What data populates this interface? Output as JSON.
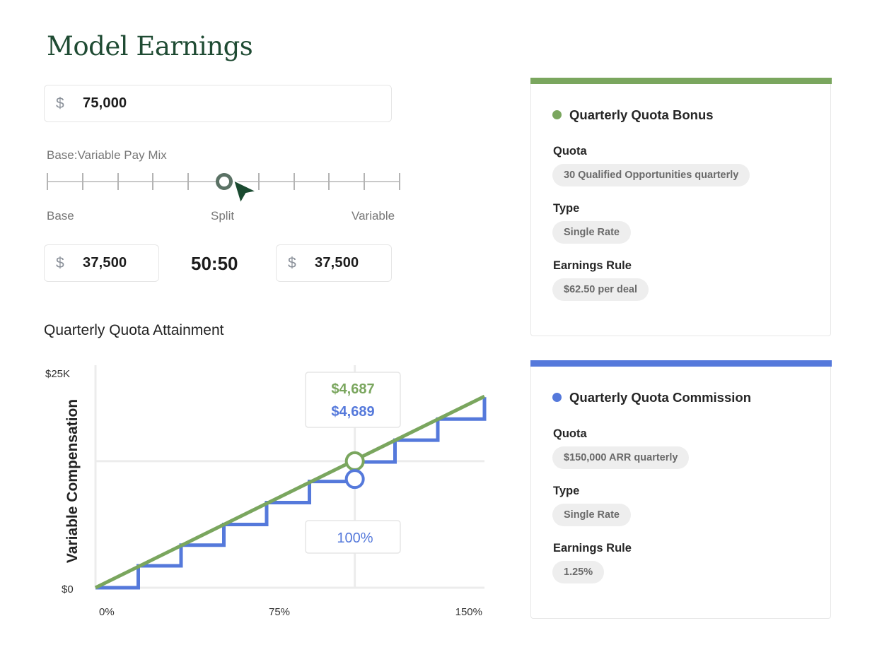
{
  "title": "Model Earnings",
  "total": {
    "currency": "$",
    "value": "75,000"
  },
  "mix": {
    "label": "Base:Variable Pay Mix",
    "scale": [
      "Base",
      "Split",
      "Variable"
    ],
    "position": 0.5
  },
  "base": {
    "currency": "$",
    "value": "37,500"
  },
  "ratio": "50:50",
  "variable": {
    "currency": "$",
    "value": "37,500"
  },
  "chart_title": "Quarterly Quota Attainment",
  "chart_data": {
    "type": "line",
    "ylabel": "Variable Compensation",
    "yticks": [
      "$25K",
      "$0"
    ],
    "xticks": [
      "0%",
      "75%",
      "150%"
    ],
    "xlim": [
      0,
      150
    ],
    "ylim": [
      0,
      25000
    ],
    "series": [
      {
        "color": "#7aa65e",
        "points": [
          [
            0,
            0
          ],
          [
            150,
            23600
          ]
        ]
      },
      {
        "color": "#5579db",
        "steps": [
          [
            0,
            0
          ],
          [
            16.5,
            2700
          ],
          [
            33,
            5250
          ],
          [
            49.5,
            7800
          ],
          [
            66,
            10500
          ],
          [
            82.5,
            13100
          ],
          [
            99,
            15500
          ],
          [
            115.5,
            18200
          ],
          [
            132,
            20800
          ],
          [
            150,
            23500
          ]
        ]
      }
    ],
    "marker": {
      "x": 100,
      "green_value": "$4,687",
      "blue_value": "$4,689",
      "attainment": "100%",
      "green_y": 15600,
      "blue_y": 13400
    },
    "colors": {
      "green": "#7aa65e",
      "blue": "#5579db"
    }
  },
  "cards": [
    {
      "color": "#7aa65e",
      "title": "Quarterly Quota Bonus",
      "quota_label": "Quota",
      "quota": "30 Qualified Opportunities quarterly",
      "type_label": "Type",
      "type": "Single Rate",
      "rule_label": "Earnings Rule",
      "rule": "$62.50 per deal"
    },
    {
      "color": "#5579db",
      "title": "Quarterly Quota Commission",
      "quota_label": "Quota",
      "quota": "$150,000 ARR quarterly",
      "type_label": "Type",
      "type": "Single Rate",
      "rule_label": "Earnings Rule",
      "rule": "1.25%"
    }
  ]
}
